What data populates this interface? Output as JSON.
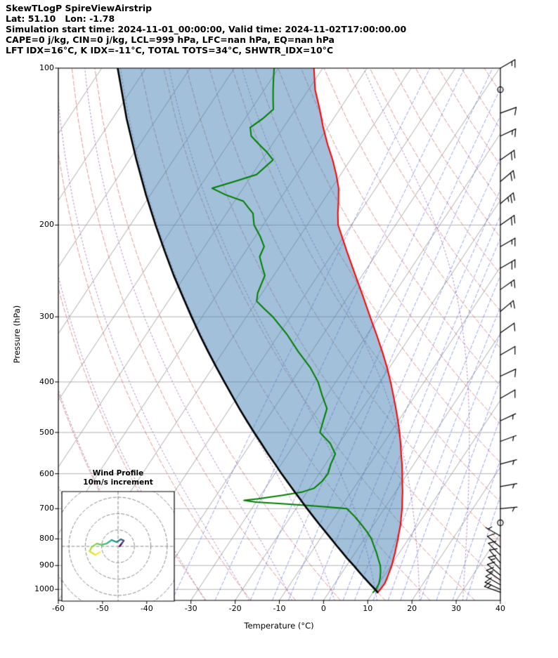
{
  "header": {
    "line1": "SkewTLogP SpireViewAirstrip",
    "line2": "Lat: 51.10   Lon: -1.78",
    "line3": "Simulation start time: 2024-11-01_00:00:00, Valid time: 2024-11-02T17:00:00.00",
    "line4": "CAPE=0 j/kg, CIN=0 j/kg, LCL=999 hPa, LFC=nan hPa, EQ=nan hPa",
    "line5": "LFT IDX=16°C, K IDX=-11°C, TOTAL TOTS=34°C, SHWTR_IDX=10°C"
  },
  "axes": {
    "xlabel": "Temperature (°C)",
    "ylabel": "Pressure (hPa)",
    "x_ticks": [
      -60,
      -50,
      -40,
      -30,
      -20,
      -10,
      0,
      10,
      20,
      30,
      40
    ],
    "y_ticks": [
      100,
      200,
      300,
      400,
      500,
      600,
      700,
      800,
      900,
      1000
    ]
  },
  "inset": {
    "title_line1": "Wind Profile",
    "title_line2": "10m/s increment"
  },
  "chart_data": {
    "type": "skewt-logp",
    "title": "SkewTLogP SpireViewAirstrip",
    "x_range_c": [
      -60,
      40
    ],
    "p_range_hpa": [
      1050,
      100
    ],
    "skew_factor": 0.6624,
    "colors": {
      "temperature": "#ff0000",
      "dewpoint": "#008000",
      "parcel": "#000000",
      "shading": "rgba(70,130,180,0.50)",
      "isotherms": "#969696",
      "isobars": "#b4b4b4",
      "dry_adiabats": "rgba(205,92,92,0.70)",
      "moist_adiabats": "rgba(148,87,168,0.75)",
      "mixing_ratio": "rgba(70,90,220,0.60)",
      "barbs": "#000000"
    },
    "temperature_c": [
      [
        1013,
        11.0
      ],
      [
        1000,
        11.2
      ],
      [
        975,
        11.3
      ],
      [
        950,
        11.0
      ],
      [
        925,
        10.6
      ],
      [
        900,
        10.2
      ],
      [
        875,
        9.6
      ],
      [
        850,
        9.0
      ],
      [
        825,
        8.3
      ],
      [
        800,
        7.6
      ],
      [
        775,
        6.8
      ],
      [
        750,
        6.0
      ],
      [
        725,
        5.0
      ],
      [
        700,
        4.0
      ],
      [
        675,
        2.8
      ],
      [
        650,
        1.6
      ],
      [
        625,
        0.2
      ],
      [
        600,
        -1.2
      ],
      [
        575,
        -2.7
      ],
      [
        550,
        -4.4
      ],
      [
        525,
        -6.1
      ],
      [
        500,
        -8.0
      ],
      [
        475,
        -10.1
      ],
      [
        450,
        -12.4
      ],
      [
        425,
        -14.9
      ],
      [
        400,
        -17.6
      ],
      [
        375,
        -20.6
      ],
      [
        350,
        -24.0
      ],
      [
        325,
        -27.8
      ],
      [
        300,
        -32.0
      ],
      [
        275,
        -36.5
      ],
      [
        250,
        -41.5
      ],
      [
        225,
        -47.0
      ],
      [
        200,
        -53.0
      ],
      [
        190,
        -54.8
      ],
      [
        180,
        -56.5
      ],
      [
        170,
        -58.4
      ],
      [
        160,
        -61.0
      ],
      [
        150,
        -64.0
      ],
      [
        140,
        -67.5
      ],
      [
        130,
        -71.0
      ],
      [
        120,
        -74.5
      ],
      [
        110,
        -78.5
      ],
      [
        100,
        -82.0
      ]
    ],
    "dewpoint_c": [
      [
        1013,
        10.0
      ],
      [
        1000,
        10.2
      ],
      [
        975,
        10.0
      ],
      [
        950,
        9.4
      ],
      [
        925,
        8.6
      ],
      [
        900,
        7.6
      ],
      [
        875,
        6.2
      ],
      [
        850,
        4.8
      ],
      [
        825,
        3.2
      ],
      [
        800,
        1.6
      ],
      [
        775,
        -0.5
      ],
      [
        750,
        -2.9
      ],
      [
        725,
        -5.5
      ],
      [
        700,
        -8.5
      ],
      [
        695,
        -13
      ],
      [
        690,
        -18
      ],
      [
        685,
        -24
      ],
      [
        680,
        -30
      ],
      [
        675,
        -33
      ],
      [
        670,
        -30
      ],
      [
        660,
        -25
      ],
      [
        650,
        -21
      ],
      [
        640,
        -19
      ],
      [
        620,
        -18.2
      ],
      [
        600,
        -18
      ],
      [
        575,
        -18.8
      ],
      [
        550,
        -19.3
      ],
      [
        525,
        -22
      ],
      [
        500,
        -26
      ],
      [
        475,
        -27
      ],
      [
        450,
        -28
      ],
      [
        425,
        -31
      ],
      [
        400,
        -34
      ],
      [
        375,
        -38
      ],
      [
        350,
        -43
      ],
      [
        325,
        -48
      ],
      [
        300,
        -54
      ],
      [
        290,
        -57
      ],
      [
        280,
        -60
      ],
      [
        270,
        -61
      ],
      [
        260,
        -61.5
      ],
      [
        250,
        -62
      ],
      [
        240,
        -64
      ],
      [
        230,
        -66
      ],
      [
        220,
        -66.5
      ],
      [
        210,
        -69
      ],
      [
        200,
        -72
      ],
      [
        195,
        -73
      ],
      [
        190,
        -74
      ],
      [
        185,
        -76
      ],
      [
        180,
        -78
      ],
      [
        175,
        -83
      ],
      [
        170,
        -87
      ],
      [
        165,
        -83
      ],
      [
        160,
        -79
      ],
      [
        150,
        -77.5
      ],
      [
        145,
        -80
      ],
      [
        140,
        -83
      ],
      [
        135,
        -86
      ],
      [
        130,
        -87.5
      ],
      [
        125,
        -86
      ],
      [
        120,
        -85
      ],
      [
        115,
        -86.5
      ],
      [
        110,
        -88
      ],
      [
        105,
        -89.5
      ],
      [
        100,
        -91
      ]
    ],
    "parcel_c": [
      [
        1013,
        11.0
      ],
      [
        1000,
        10.0
      ],
      [
        975,
        7.9
      ],
      [
        950,
        5.8
      ],
      [
        925,
        3.7
      ],
      [
        900,
        1.6
      ],
      [
        875,
        -0.7
      ],
      [
        850,
        -2.9
      ],
      [
        825,
        -5.2
      ],
      [
        800,
        -7.5
      ],
      [
        775,
        -9.9
      ],
      [
        750,
        -12.4
      ],
      [
        725,
        -14.9
      ],
      [
        700,
        -17.5
      ],
      [
        675,
        -20.1
      ],
      [
        650,
        -22.8
      ],
      [
        625,
        -25.6
      ],
      [
        600,
        -28.5
      ],
      [
        575,
        -31.4
      ],
      [
        550,
        -34.5
      ],
      [
        525,
        -37.6
      ],
      [
        500,
        -40.9
      ],
      [
        475,
        -44.3
      ],
      [
        450,
        -47.8
      ],
      [
        425,
        -51.4
      ],
      [
        400,
        -55.2
      ],
      [
        375,
        -59.2
      ],
      [
        350,
        -63.4
      ],
      [
        325,
        -67.8
      ],
      [
        300,
        -72.4
      ],
      [
        275,
        -77.3
      ],
      [
        250,
        -82.6
      ],
      [
        225,
        -88.2
      ],
      [
        200,
        -94.3
      ],
      [
        175,
        -101.0
      ],
      [
        150,
        -108.4
      ],
      [
        125,
        -116.8
      ],
      [
        100,
        -126.4
      ]
    ],
    "background": {
      "isotherms_c": {
        "min": -160,
        "max": 40,
        "step": 10
      },
      "isobars_hpa": [
        100,
        200,
        300,
        400,
        500,
        600,
        700,
        800,
        900,
        1000
      ],
      "dry_adiabats_theta_c": {
        "min": -40,
        "max": 200,
        "step": 10
      },
      "moist_adiabats_thetaw_c": {
        "min": -60,
        "max": 40,
        "step": 10
      },
      "mixing_ratios_g_kg": [
        0.2,
        0.5,
        1,
        1.5,
        2,
        3,
        4,
        5,
        6,
        8,
        10,
        12,
        16,
        20,
        25,
        30
      ]
    },
    "wind_barbs_p_kt_dir": [
      [
        100,
        15,
        60
      ],
      [
        110,
        0,
        0
      ],
      [
        122,
        10,
        70
      ],
      [
        135,
        15,
        65
      ],
      [
        150,
        20,
        55
      ],
      [
        165,
        20,
        50
      ],
      [
        182,
        25,
        50
      ],
      [
        200,
        20,
        55
      ],
      [
        220,
        15,
        60
      ],
      [
        242,
        20,
        60
      ],
      [
        266,
        15,
        55
      ],
      [
        293,
        15,
        50
      ],
      [
        322,
        10,
        55
      ],
      [
        355,
        10,
        60
      ],
      [
        390,
        10,
        65
      ],
      [
        430,
        10,
        60
      ],
      [
        475,
        5,
        65
      ],
      [
        520,
        5,
        70
      ],
      [
        575,
        5,
        75
      ],
      [
        635,
        5,
        80
      ],
      [
        700,
        5,
        85
      ],
      [
        745,
        0,
        0
      ],
      [
        790,
        5,
        300
      ],
      [
        830,
        10,
        310
      ],
      [
        860,
        10,
        315
      ],
      [
        890,
        10,
        320
      ],
      [
        915,
        15,
        315
      ],
      [
        940,
        10,
        310
      ],
      [
        960,
        15,
        305
      ],
      [
        980,
        10,
        300
      ],
      [
        1000,
        10,
        295
      ],
      [
        1013,
        15,
        290
      ]
    ],
    "hodograph": {
      "increment_ms": 10,
      "rings_ms": [
        10,
        20,
        30,
        40
      ],
      "points_uv_ms": [
        [
          0.9,
          0
        ],
        [
          2.2,
          1.7
        ],
        [
          3.5,
          3.5
        ],
        [
          1.7,
          4.3
        ],
        [
          -0.9,
          2.6
        ],
        [
          -3.9,
          3.9
        ],
        [
          -7,
          1.7
        ],
        [
          -10,
          0.9
        ],
        [
          -13,
          1.7
        ],
        [
          -16.1,
          -0.4
        ],
        [
          -17.4,
          -3
        ],
        [
          -13.9,
          -5.2
        ],
        [
          -10.9,
          -3.5
        ]
      ],
      "segment_colors": [
        "#440154",
        "#46327e",
        "#3b528b",
        "#2c728e",
        "#21918c",
        "#27ad81",
        "#42be71",
        "#5ec962",
        "#84d44b",
        "#addc30",
        "#d8e219",
        "#fde725"
      ]
    }
  }
}
